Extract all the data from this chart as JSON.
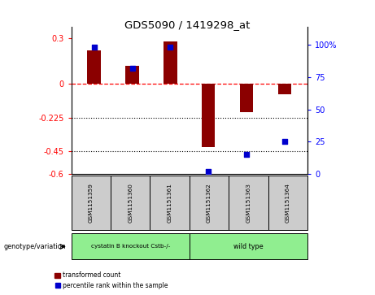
{
  "title": "GDS5090 / 1419298_at",
  "samples": [
    "GSM1151359",
    "GSM1151360",
    "GSM1151361",
    "GSM1151362",
    "GSM1151363",
    "GSM1151364"
  ],
  "transformed_count": [
    0.22,
    0.12,
    0.28,
    -0.42,
    -0.19,
    -0.07
  ],
  "percentile_rank": [
    98,
    82,
    98,
    2,
    15,
    25
  ],
  "group1_label": "cystatin B knockout Cstb-/-",
  "group2_label": "wild type",
  "group_color": "#90ee90",
  "sample_box_color": "#cccccc",
  "genotype_label": "genotype/variation",
  "ylim_left": [
    -0.6,
    0.38
  ],
  "ylim_right": [
    0,
    114
  ],
  "yticks_left": [
    0.3,
    0.0,
    -0.225,
    -0.45,
    -0.6
  ],
  "yticks_left_labels": [
    "0.3",
    "0",
    "-0.225",
    "-0.45",
    "-0.6"
  ],
  "yticks_right": [
    100,
    75,
    50,
    25,
    0
  ],
  "yticks_right_labels": [
    "100%",
    "75",
    "50",
    "25",
    "0"
  ],
  "bar_color": "#8B0000",
  "dot_color": "#0000CD",
  "bar_width": 0.35,
  "legend_label_bar": "transformed count",
  "legend_label_dot": "percentile rank within the sample"
}
